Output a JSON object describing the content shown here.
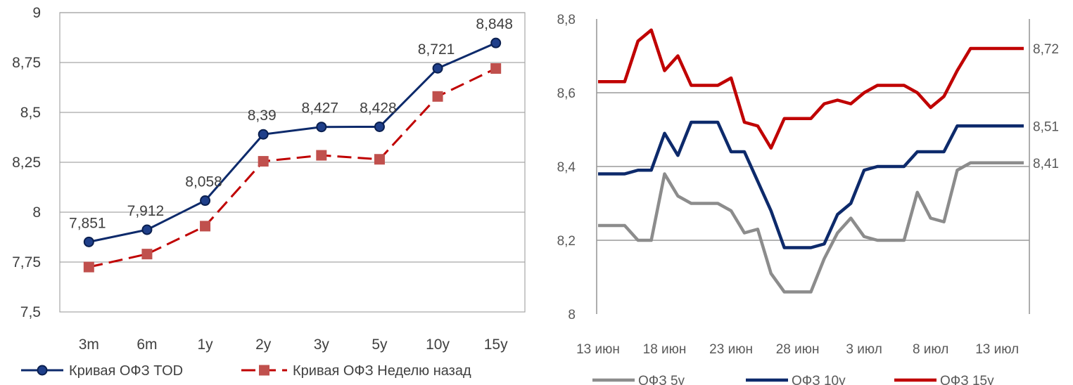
{
  "chart_data": [
    {
      "type": "line",
      "categories": [
        "3m",
        "6m",
        "1y",
        "2y",
        "3y",
        "5y",
        "10y",
        "15y"
      ],
      "ylim": [
        7.5,
        9
      ],
      "yticks": [
        "7,5",
        "7,75",
        "8",
        "8,25",
        "8,5",
        "8,75",
        "9"
      ],
      "grid": true,
      "legend_position": "bottom",
      "series": [
        {
          "name": "Кривая ОФЗ TOD",
          "values": [
            7.851,
            7.912,
            8.058,
            8.39,
            8.427,
            8.428,
            8.721,
            8.848
          ],
          "labels": [
            "7,851",
            "7,912",
            "8,058",
            "8,39",
            "8,427",
            "8,428",
            "8,721",
            "8,848"
          ],
          "color": "#0d2a6b",
          "marker": "circle",
          "dash": "solid"
        },
        {
          "name": "Кривая ОФЗ Неделю назад",
          "values": [
            7.725,
            7.79,
            7.93,
            8.255,
            8.285,
            8.265,
            8.58,
            8.72
          ],
          "color": "#c00000",
          "marker_color": "#c0504d",
          "marker": "square",
          "dash": "dashed"
        }
      ]
    },
    {
      "type": "line",
      "x_start_date": "2017-06-13",
      "xticks": [
        "13 июн",
        "18 июн",
        "23 июн",
        "28 июн",
        "3 июл",
        "8 июл",
        "13 июл"
      ],
      "ylim": [
        8,
        8.8
      ],
      "yticks": [
        "8",
        "8,2",
        "8,4",
        "8,6",
        "8,8"
      ],
      "grid": true,
      "legend_position": "bottom",
      "end_labels": [
        "8,72",
        "8,51",
        "8,41"
      ],
      "series": [
        {
          "name": "ОФЗ 5y",
          "color": "#8c8c8c",
          "values": [
            8.24,
            8.24,
            8.24,
            8.2,
            8.2,
            8.38,
            8.32,
            8.3,
            8.3,
            8.3,
            8.28,
            8.22,
            8.23,
            8.11,
            8.06,
            8.06,
            8.06,
            8.15,
            8.22,
            8.26,
            8.21,
            8.2,
            8.2,
            8.2,
            8.33,
            8.26,
            8.25,
            8.39,
            8.41,
            8.41,
            8.41,
            8.41,
            8.41
          ]
        },
        {
          "name": "ОФЗ 10y",
          "color": "#0d2a6b",
          "values": [
            8.38,
            8.38,
            8.38,
            8.39,
            8.39,
            8.49,
            8.43,
            8.52,
            8.52,
            8.52,
            8.44,
            8.44,
            8.36,
            8.28,
            8.18,
            8.18,
            8.18,
            8.19,
            8.27,
            8.3,
            8.39,
            8.4,
            8.4,
            8.4,
            8.44,
            8.44,
            8.44,
            8.51,
            8.51,
            8.51,
            8.51,
            8.51,
            8.51
          ]
        },
        {
          "name": "ОФЗ 15y",
          "color": "#c00000",
          "values": [
            8.63,
            8.63,
            8.63,
            8.74,
            8.77,
            8.66,
            8.7,
            8.62,
            8.62,
            8.62,
            8.64,
            8.52,
            8.51,
            8.45,
            8.53,
            8.53,
            8.53,
            8.57,
            8.58,
            8.57,
            8.6,
            8.62,
            8.62,
            8.62,
            8.6,
            8.56,
            8.59,
            8.66,
            8.72,
            8.72,
            8.72,
            8.72,
            8.72
          ]
        }
      ]
    }
  ]
}
